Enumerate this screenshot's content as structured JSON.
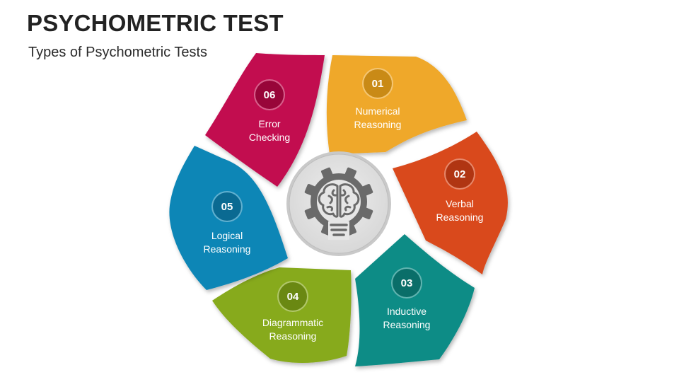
{
  "title": "PSYCHOMETRIC TEST",
  "subtitle": "Types of Psychometric Tests",
  "center_icon": "brain-gear-lightbulb-icon",
  "segments": [
    {
      "number": "01",
      "line1": "Numerical",
      "line2": "Reasoning",
      "color": "#EFA82B",
      "badge_color": "#C98A16"
    },
    {
      "number": "02",
      "line1": "Verbal",
      "line2": "Reasoning",
      "color": "#D9491C",
      "badge_color": "#B03512"
    },
    {
      "number": "03",
      "line1": "Inductive",
      "line2": "Reasoning",
      "color": "#108C86",
      "badge_color": "#0A6E69"
    },
    {
      "number": "04",
      "line1": "Diagrammatic",
      "line2": "Reasoning",
      "color": "#87AA1B",
      "badge_color": "#6A8812"
    },
    {
      "number": "05",
      "line1": "Logical",
      "line2": "Reasoning",
      "color": "#0F86B6",
      "badge_color": "#0A6A92"
    },
    {
      "number": "06",
      "line1": "Error",
      "line2": "Checking",
      "color": "#C2084F",
      "badge_color": "#980539"
    }
  ]
}
